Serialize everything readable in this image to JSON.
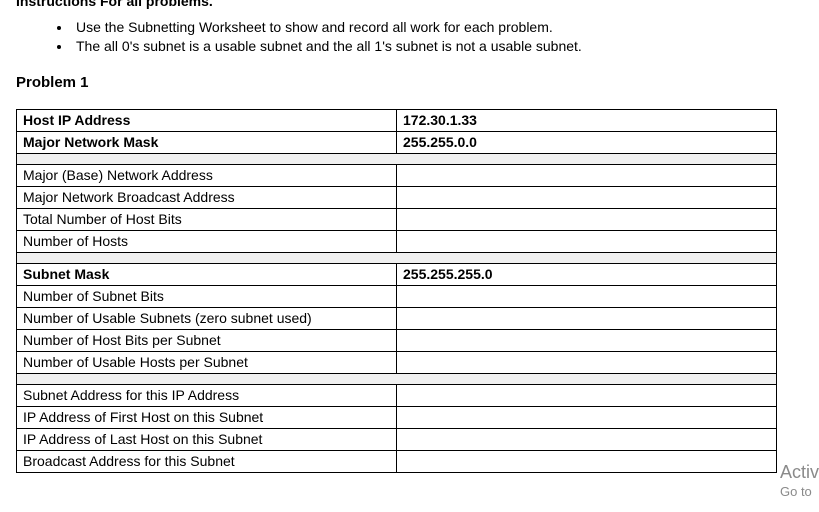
{
  "cut_top_text": "Instructions For all problems.",
  "bullets": [
    "Use the Subnetting Worksheet to show and record all work for each problem.",
    "The all 0's subnet is a usable subnet and the all 1's subnet is not a usable subnet."
  ],
  "problem_heading": "Problem 1",
  "table": {
    "rows": [
      {
        "label": "Host IP Address",
        "value": "172.30.1.33",
        "bold": true
      },
      {
        "label": "Major Network Mask",
        "value": "255.255.0.0",
        "bold": true
      },
      {
        "spacer": true
      },
      {
        "label": "Major (Base) Network Address",
        "value": ""
      },
      {
        "label": "Major Network Broadcast Address",
        "value": ""
      },
      {
        "label": "Total Number of Host Bits",
        "value": ""
      },
      {
        "label": "Number of Hosts",
        "value": ""
      },
      {
        "spacer": true
      },
      {
        "label": "Subnet Mask",
        "value": "255.255.255.0",
        "bold": true
      },
      {
        "label": "Number of Subnet Bits",
        "value": ""
      },
      {
        "label": "Number of Usable Subnets (zero subnet used)",
        "value": ""
      },
      {
        "label": "Number of Host Bits per Subnet",
        "value": ""
      },
      {
        "label": "Number of Usable Hosts per Subnet",
        "value": ""
      },
      {
        "spacer": true
      },
      {
        "label": "Subnet Address for this IP Address",
        "value": ""
      },
      {
        "label": "IP Address of First Host on this Subnet",
        "value": ""
      },
      {
        "label": "IP Address of Last Host on this Subnet",
        "value": ""
      },
      {
        "label": "Broadcast Address for this Subnet",
        "value": ""
      }
    ]
  },
  "watermark": {
    "line1": "Activ",
    "line2": "Go to"
  },
  "colors": {
    "text": "#000000",
    "background": "#ffffff",
    "spacer_bg": "#f0f0f0",
    "border": "#000000",
    "watermark": "#8a8a8a"
  }
}
